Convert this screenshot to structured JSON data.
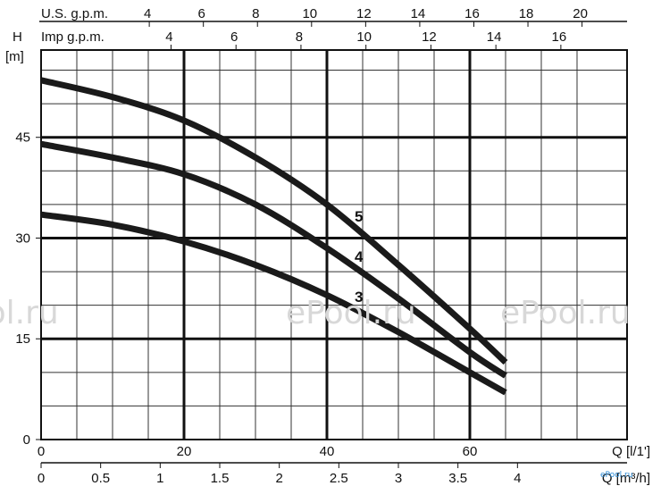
{
  "chart_data": {
    "type": "line",
    "title": "",
    "ylabel_line1": "H",
    "ylabel_line2": "[m]",
    "xlabel_lps": "Q [l/1']",
    "xlabel_m3h": "Q [m³/h]",
    "top_axis1_label": "U.S. g.p.m.",
    "top_axis2_label": "Imp g.p.m.",
    "x_range_lpm": [
      0,
      82
    ],
    "y_range_m": [
      0,
      58
    ],
    "x_ticks_lpm": [
      0,
      20,
      40,
      60
    ],
    "y_ticks_m": [
      0,
      15,
      30,
      45
    ],
    "x_ticks_m3h": [
      0,
      0.5,
      1,
      1.5,
      2,
      2.5,
      3,
      3.5,
      4
    ],
    "us_gpm_ticks": [
      4,
      6,
      8,
      10,
      12,
      14,
      16,
      18,
      20
    ],
    "imp_gpm_ticks": [
      4,
      6,
      8,
      10,
      12,
      14,
      16
    ],
    "grid": true,
    "series": [
      {
        "name": "5",
        "x": [
          0,
          10,
          20,
          30,
          40,
          50,
          60,
          65
        ],
        "y": [
          53.5,
          51,
          47.5,
          42,
          35,
          26,
          16.5,
          11.5
        ]
      },
      {
        "name": "4",
        "x": [
          0,
          10,
          20,
          30,
          40,
          50,
          60,
          65
        ],
        "y": [
          44,
          42,
          39.5,
          35,
          28.5,
          21,
          13,
          9.5
        ]
      },
      {
        "name": "3",
        "x": [
          0,
          10,
          20,
          30,
          40,
          50,
          60,
          65
        ],
        "y": [
          33.5,
          32,
          29.5,
          26,
          21.5,
          16,
          10,
          7
        ]
      }
    ],
    "watermark": "ePool.ru",
    "watermark_small": "ePool.ru"
  }
}
